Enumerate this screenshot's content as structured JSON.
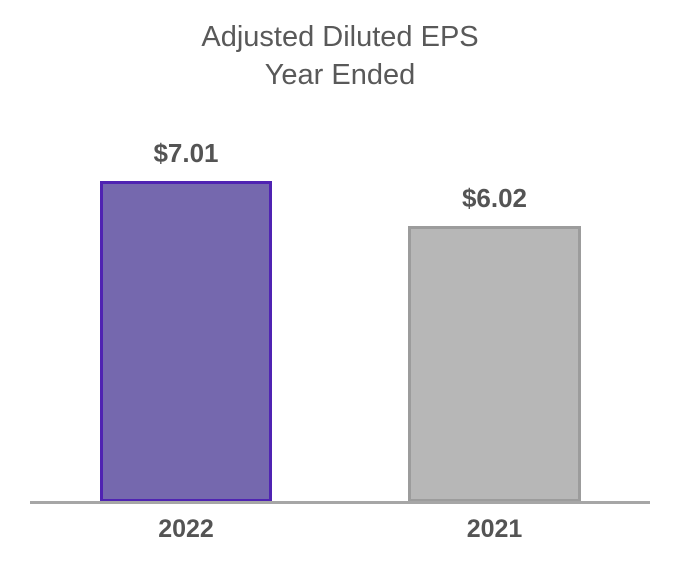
{
  "chart_data": {
    "type": "bar",
    "title_line1": "Adjusted Diluted EPS",
    "title_line2": "Year Ended",
    "categories": [
      "2022",
      "2021"
    ],
    "values": [
      7.01,
      6.02
    ],
    "bars": [
      {
        "category": "2022",
        "value": 7.01,
        "label": "$7.01",
        "fill": "#7568AE",
        "border": "#4F23B2"
      },
      {
        "category": "2021",
        "value": 6.02,
        "label": "$6.02",
        "fill": "#B7B7B7",
        "border": "#9C9C9C"
      }
    ],
    "ylim": [
      0,
      7.01
    ],
    "grid": false,
    "legend": false,
    "axis_color": "#A6A6A6",
    "title_color": "#595959",
    "label_color": "#545454"
  }
}
